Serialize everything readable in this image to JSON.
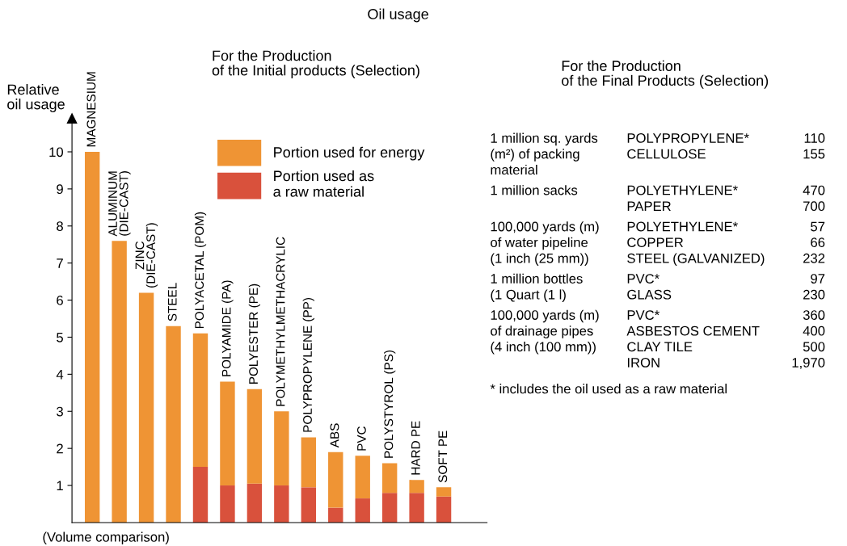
{
  "chart_data": [
    {
      "type": "bar",
      "title": "Oil usage",
      "subtitle": "For the Production\nof the Initial products (Selection)",
      "ylabel": "Relative\noil usage",
      "categories": [
        "MAGNESIUM",
        "ALUMINUM\n(DIE-CAST)",
        "ZINC\n(DIE-CAST)",
        "STEEL",
        "POLYACETAL (POM)",
        "POLYAMIDE (PA)",
        "POLYESTER (PE)",
        "POLYMETHYLMETHACRYLIC",
        "POLYPROPYLENE (PP)",
        "ABS",
        "PVC",
        "POLYSTYROL (PS)",
        "HARD PE",
        "SOFT PE"
      ],
      "stacked": true,
      "series": [
        {
          "name": "Portion used as\na raw material",
          "color": "#d9513c",
          "values": [
            null,
            null,
            null,
            null,
            1.5,
            1.0,
            1.05,
            1.0,
            0.95,
            0.4,
            0.65,
            0.8,
            0.8,
            0.7
          ]
        },
        {
          "name": "Portion used for energy",
          "color": "#ef9434",
          "values": [
            10,
            7.6,
            6.2,
            5.3,
            3.6,
            2.8,
            2.55,
            2.0,
            1.35,
            1.5,
            1.15,
            0.8,
            0.35,
            0.25
          ]
        }
      ],
      "ylim": [
        0,
        10.9
      ],
      "yticks": [
        1,
        2,
        3,
        4,
        5,
        6,
        7,
        8,
        9,
        10
      ],
      "grid": false,
      "legend": "top",
      "annotations": [
        "(Volume comparison)"
      ]
    },
    {
      "type": "other",
      "title": "For the Production\nof the Final Products (Selection)",
      "y_categories": [
        "1 million sq. yards\n(m²) of packing\nmaterial",
        null,
        "1 million sacks",
        null,
        "100,000 yards (m)\nof water pipeline\n(1 inch (25 mm))",
        null,
        null,
        "1 million bottles\n(1 Quart (1 l)",
        null,
        "100,000 yards (m)\nof drainage pipes\n(4 inch (100 mm))",
        null,
        null,
        null
      ],
      "categories": [
        "POLYPROPYLENE*",
        "CELLULOSE",
        "POLYETHYLENE*",
        "PAPER",
        "POLYETHYLENE*",
        "COPPER",
        "STEEL (GALVANIZED)",
        "PVC*",
        "GLASS",
        "PVC*",
        "ASBESTOS CEMENT",
        "CLAY TILE",
        "IRON"
      ],
      "value_labels": [
        "110",
        "155",
        "470",
        "700",
        "57",
        "66",
        "232",
        "97",
        "230",
        "360",
        "400",
        "500",
        "1,970"
      ],
      "annotations": [
        "* includes the oil used as a raw material"
      ]
    }
  ]
}
